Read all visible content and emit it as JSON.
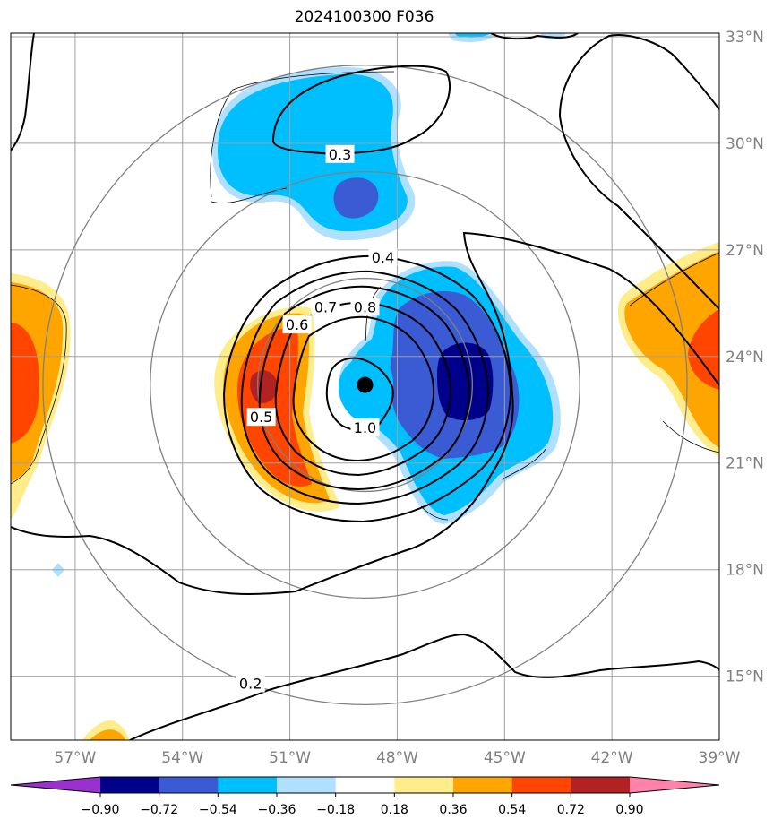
{
  "chart_data": {
    "type": "filled-contour-map",
    "title": "2024100300 F036",
    "x_range": [
      -58.8,
      -39.0
    ],
    "y_range": [
      13.2,
      33.1
    ],
    "lon_ticks": [
      "57°W",
      "54°W",
      "51°W",
      "48°W",
      "45°W",
      "42°W",
      "39°W"
    ],
    "lon_tick_values": [
      -57,
      -54,
      -51,
      -48,
      -45,
      -42,
      -39
    ],
    "lat_ticks": [
      "33°N",
      "30°N",
      "27°N",
      "24°N",
      "21°N",
      "18°N",
      "15°N"
    ],
    "lat_tick_values": [
      33,
      30,
      27,
      24,
      21,
      18,
      15
    ],
    "grid": true,
    "center": {
      "lon": -48.9,
      "lat": 23.2
    },
    "range_rings_deg": [
      3,
      6,
      9
    ],
    "colorbar": {
      "orientation": "horizontal",
      "extend": "both",
      "levels": [
        "−0.90",
        "−0.72",
        "−0.54",
        "−0.36",
        "−0.18",
        "0.18",
        "0.36",
        "0.54",
        "0.72",
        "0.90"
      ],
      "level_values": [
        -0.9,
        -0.72,
        -0.54,
        -0.36,
        -0.18,
        0.18,
        0.36,
        0.54,
        0.72,
        0.9
      ],
      "colors": [
        "#9932cc",
        "#00008b",
        "#3a5bd4",
        "#00bfff",
        "#b0e0ff",
        "#ffffff",
        "#ffec8b",
        "#ffa500",
        "#ff4500",
        "#b22222",
        "#ff82ab"
      ]
    },
    "contour_labels": [
      {
        "text": "0.3",
        "lon": -49.6,
        "lat": 29.7
      },
      {
        "text": "0.4",
        "lon": -48.4,
        "lat": 26.8
      },
      {
        "text": "0.6",
        "lon": -50.8,
        "lat": 24.9
      },
      {
        "text": "0.7",
        "lon": -50.0,
        "lat": 25.4
      },
      {
        "text": "0.8",
        "lon": -48.9,
        "lat": 25.4
      },
      {
        "text": "0.5",
        "lon": -51.8,
        "lat": 22.3
      },
      {
        "text": "1.0",
        "lon": -48.9,
        "lat": 22.0
      },
      {
        "text": "0.2",
        "lon": -52.1,
        "lat": 14.8
      }
    ]
  }
}
